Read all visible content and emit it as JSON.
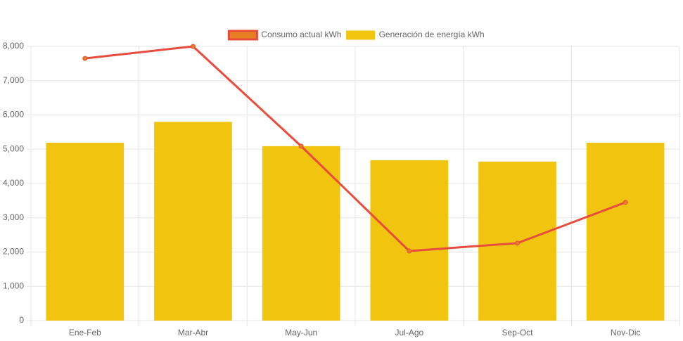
{
  "chart_data": {
    "type": "bar",
    "categories": [
      "Ene-Feb",
      "Mar-Abr",
      "May-Jun",
      "Jul-Ago",
      "Sep-Oct",
      "Nov-Dic"
    ],
    "series": [
      {
        "name": "Consumo actual kWh",
        "type": "line",
        "color": "#e74c3c",
        "fill_color": "#e67e22",
        "values": [
          7650,
          8000,
          5090,
          2030,
          2260,
          3450
        ]
      },
      {
        "name": "Generación de energía kWh",
        "type": "bar",
        "color": "#f1c40f",
        "values": [
          5190,
          5800,
          5090,
          4680,
          4640,
          5190
        ]
      }
    ],
    "ylim": [
      0,
      8000
    ],
    "yticks": [
      0,
      {
        "value": 1000,
        "label": "1,000"
      },
      {
        "value": 2000,
        "label": "2,000"
      },
      {
        "value": 3000,
        "label": "3,000"
      },
      {
        "value": 4000,
        "label": "4,000"
      },
      {
        "value": 5000,
        "label": "5,000"
      },
      {
        "value": 6000,
        "label": "6,000"
      },
      {
        "value": 7000,
        "label": "7,000"
      },
      {
        "value": 8000,
        "label": "8,000"
      }
    ],
    "grid": true,
    "legend": "top"
  }
}
